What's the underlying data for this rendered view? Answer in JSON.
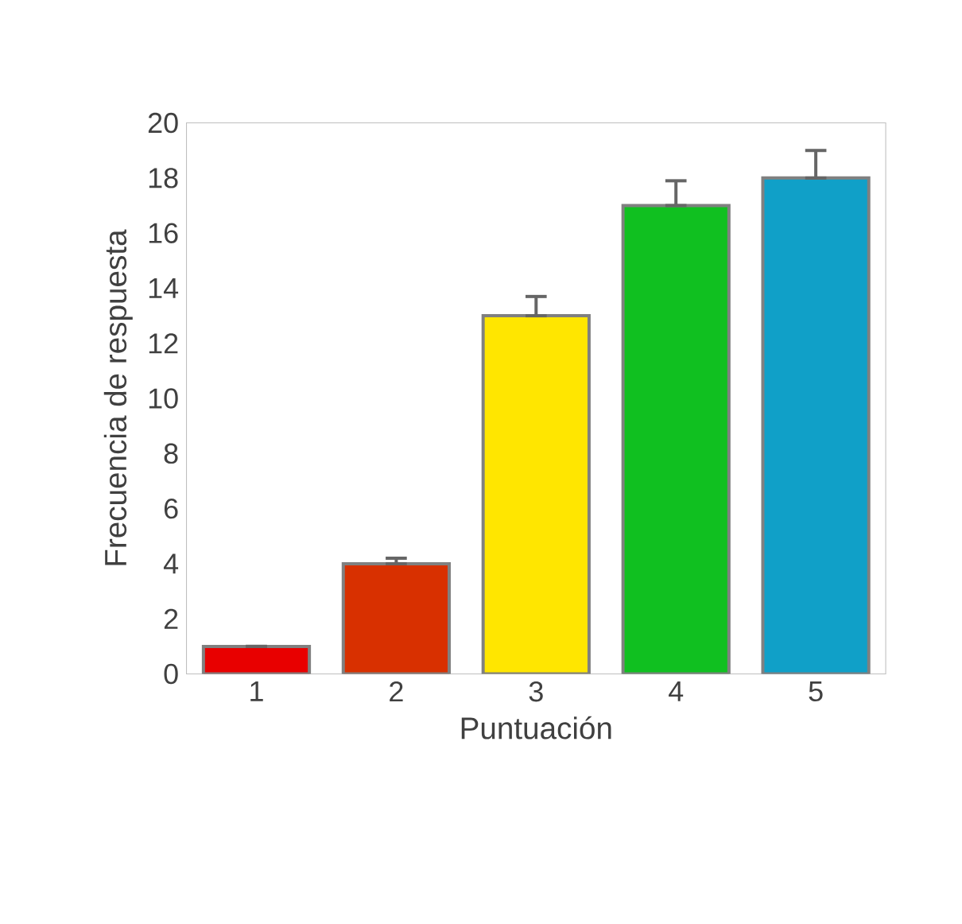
{
  "chart_data": {
    "type": "bar",
    "xlabel": "Puntuación",
    "ylabel": "Frecuencia de respuesta",
    "categories": [
      "1",
      "2",
      "3",
      "4",
      "5"
    ],
    "values": [
      1,
      4,
      13,
      17,
      18
    ],
    "colors": [
      "#e80000",
      "#d83000",
      "#ffe600",
      "#10c020",
      "#10a0c8"
    ],
    "errors": [
      [
        1,
        1
      ],
      [
        4,
        4.2
      ],
      [
        13,
        13.7
      ],
      [
        17,
        17.9
      ],
      [
        18,
        19
      ]
    ],
    "ylim": [
      0,
      20
    ],
    "yticks": [
      0,
      2,
      4,
      6,
      8,
      10,
      12,
      14,
      16,
      18,
      20
    ],
    "grid": false
  }
}
